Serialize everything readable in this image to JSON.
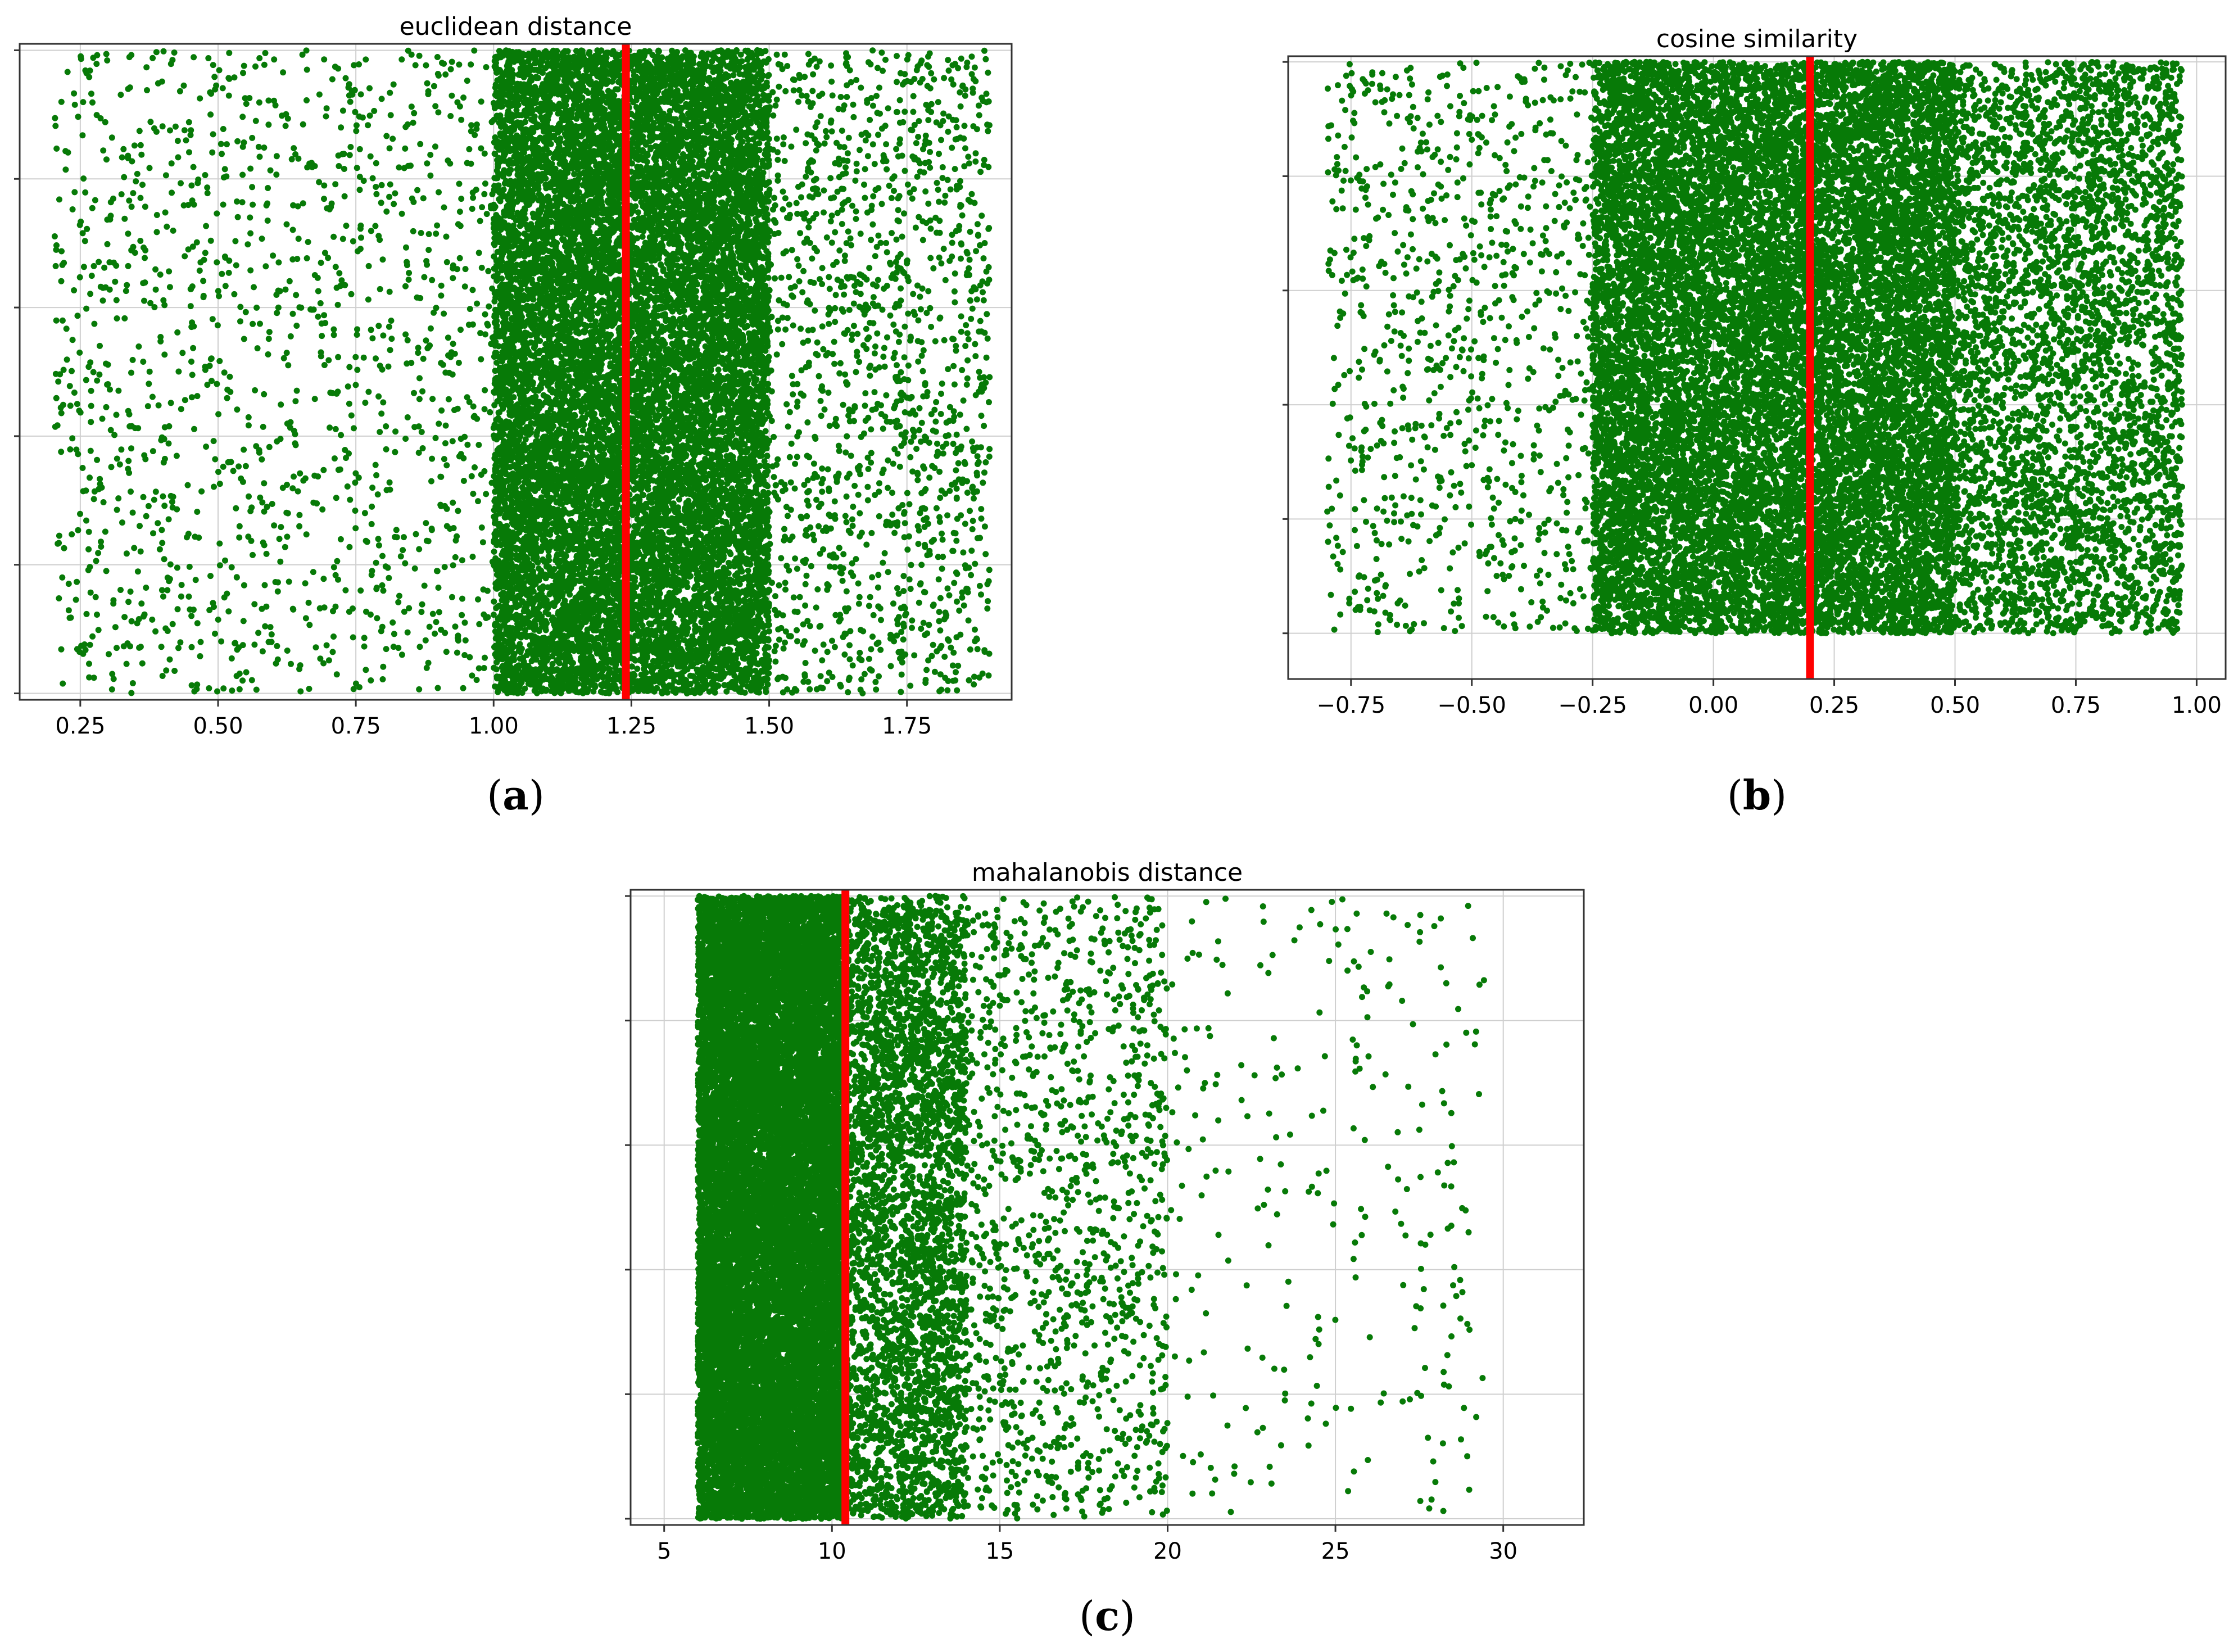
{
  "chart_data": [
    {
      "type": "scatter",
      "panel_label": "a",
      "title": "euclidean distance",
      "xlim": [
        0.14,
        1.94
      ],
      "ylim": [
        -0.05,
        5.05
      ],
      "xticks": [
        0.25,
        0.5,
        0.75,
        1.0,
        1.25,
        1.5,
        1.75
      ],
      "xtick_labels": [
        "0.25",
        "0.50",
        "0.75",
        "1.00",
        "1.25",
        "1.50",
        "1.75"
      ],
      "yticks": [
        0,
        1,
        2,
        3,
        4,
        5
      ],
      "grid": true,
      "threshold_line": {
        "x": 1.24,
        "color": "#ff0000"
      },
      "point_color": "#077a07",
      "distribution": [
        {
          "x_range": [
            0.2,
            1.0
          ],
          "count": 1300
        },
        {
          "x_range": [
            1.0,
            1.5
          ],
          "count": 15000
        },
        {
          "x_range": [
            1.5,
            1.9
          ],
          "count": 1400
        }
      ]
    },
    {
      "type": "scatter",
      "panel_label": "b",
      "title": "cosine similarity",
      "xlim": [
        -0.88,
        1.06
      ],
      "ylim": [
        -0.4,
        5.05
      ],
      "xticks": [
        -0.75,
        -0.5,
        -0.25,
        0.0,
        0.25,
        0.5,
        0.75,
        1.0
      ],
      "xtick_labels": [
        "−0.75",
        "−0.50",
        "−0.25",
        "0.00",
        "0.25",
        "0.50",
        "0.75",
        "1.00"
      ],
      "yticks": [
        0,
        1,
        2,
        3,
        4,
        5
      ],
      "grid": true,
      "threshold_line": {
        "x": 0.2,
        "color": "#ff0000"
      },
      "point_color": "#077a07",
      "distribution": [
        {
          "x_range": [
            -0.8,
            -0.25
          ],
          "count": 900
        },
        {
          "x_range": [
            -0.25,
            0.5
          ],
          "count": 15000
        },
        {
          "x_range": [
            0.5,
            0.97
          ],
          "count": 4000
        }
      ]
    },
    {
      "type": "scatter",
      "panel_label": "c",
      "title": "mahalanobis distance",
      "xlim": [
        4.0,
        32.4
      ],
      "ylim": [
        -0.05,
        5.05
      ],
      "xticks": [
        5,
        10,
        15,
        20,
        25,
        30
      ],
      "xtick_labels": [
        "5",
        "10",
        "15",
        "20",
        "25",
        "30"
      ],
      "yticks": [
        0,
        1,
        2,
        3,
        4,
        5
      ],
      "grid": true,
      "threshold_line": {
        "x": 10.4,
        "color": "#ff0000"
      },
      "point_color": "#077a07",
      "distribution": [
        {
          "x_range": [
            6.0,
            10.4
          ],
          "count": 16000
        },
        {
          "x_range": [
            10.4,
            14.0
          ],
          "count": 3500
        },
        {
          "x_range": [
            14.0,
            20.0
          ],
          "count": 1200
        },
        {
          "x_range": [
            20.0,
            29.5
          ],
          "count": 260
        }
      ]
    }
  ]
}
